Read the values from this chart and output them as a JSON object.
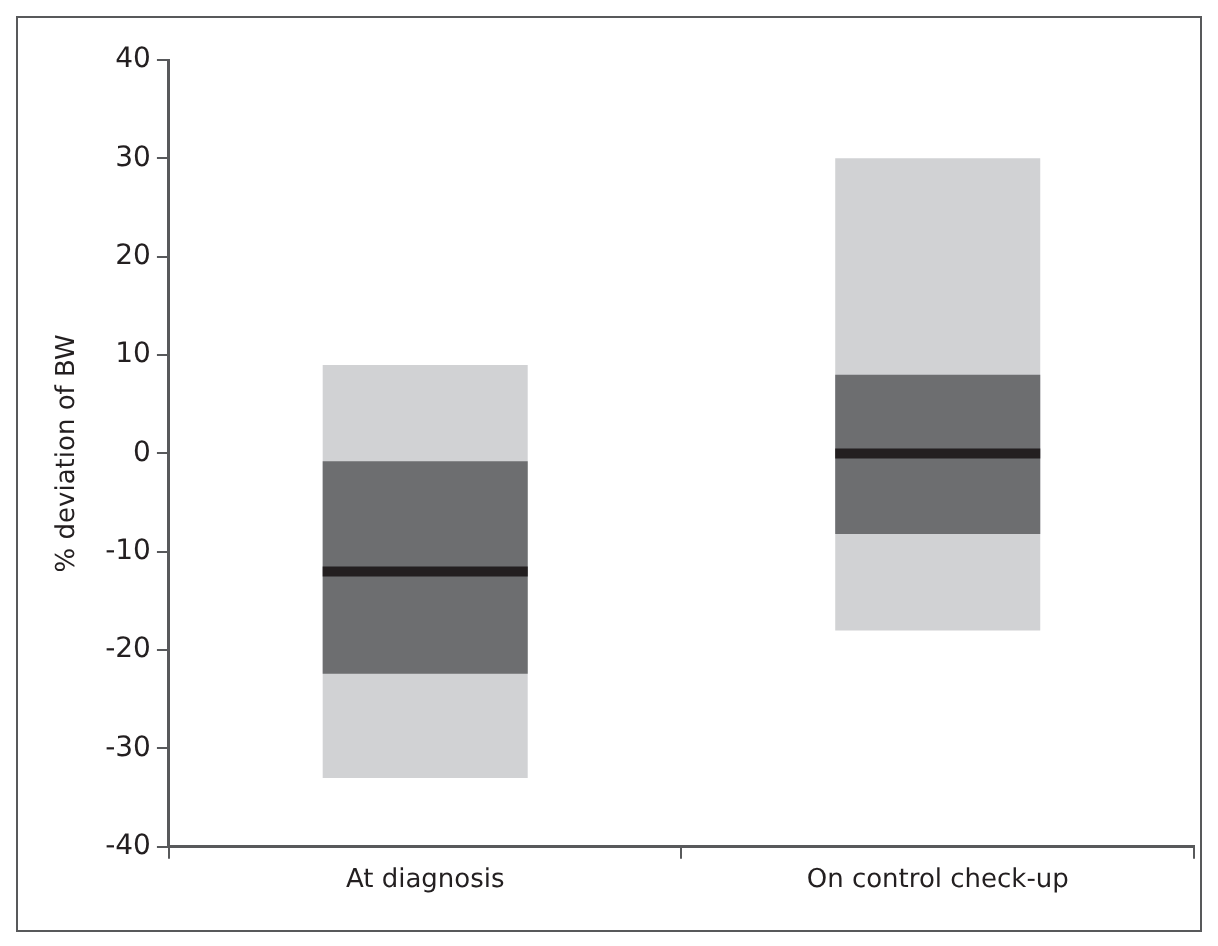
{
  "chart_data": {
    "type": "box",
    "ylabel": "% deviation of BW",
    "categories": [
      "At diagnosis",
      "On control check-up"
    ],
    "series": [
      {
        "color": "#6d6e70",
        "boxes": [
          {
            "low": -33,
            "q1": -22.4,
            "median": -12,
            "q3": -0.8,
            "high": 9
          },
          {
            "low": -18,
            "q1": -8.2,
            "median": 0,
            "q3": 8,
            "high": 30
          }
        ]
      }
    ],
    "ylim": [
      -40,
      40
    ],
    "yticks": [
      -40,
      -30,
      -20,
      -10,
      0,
      10,
      20,
      30,
      40
    ],
    "grid": false,
    "legend": false
  }
}
